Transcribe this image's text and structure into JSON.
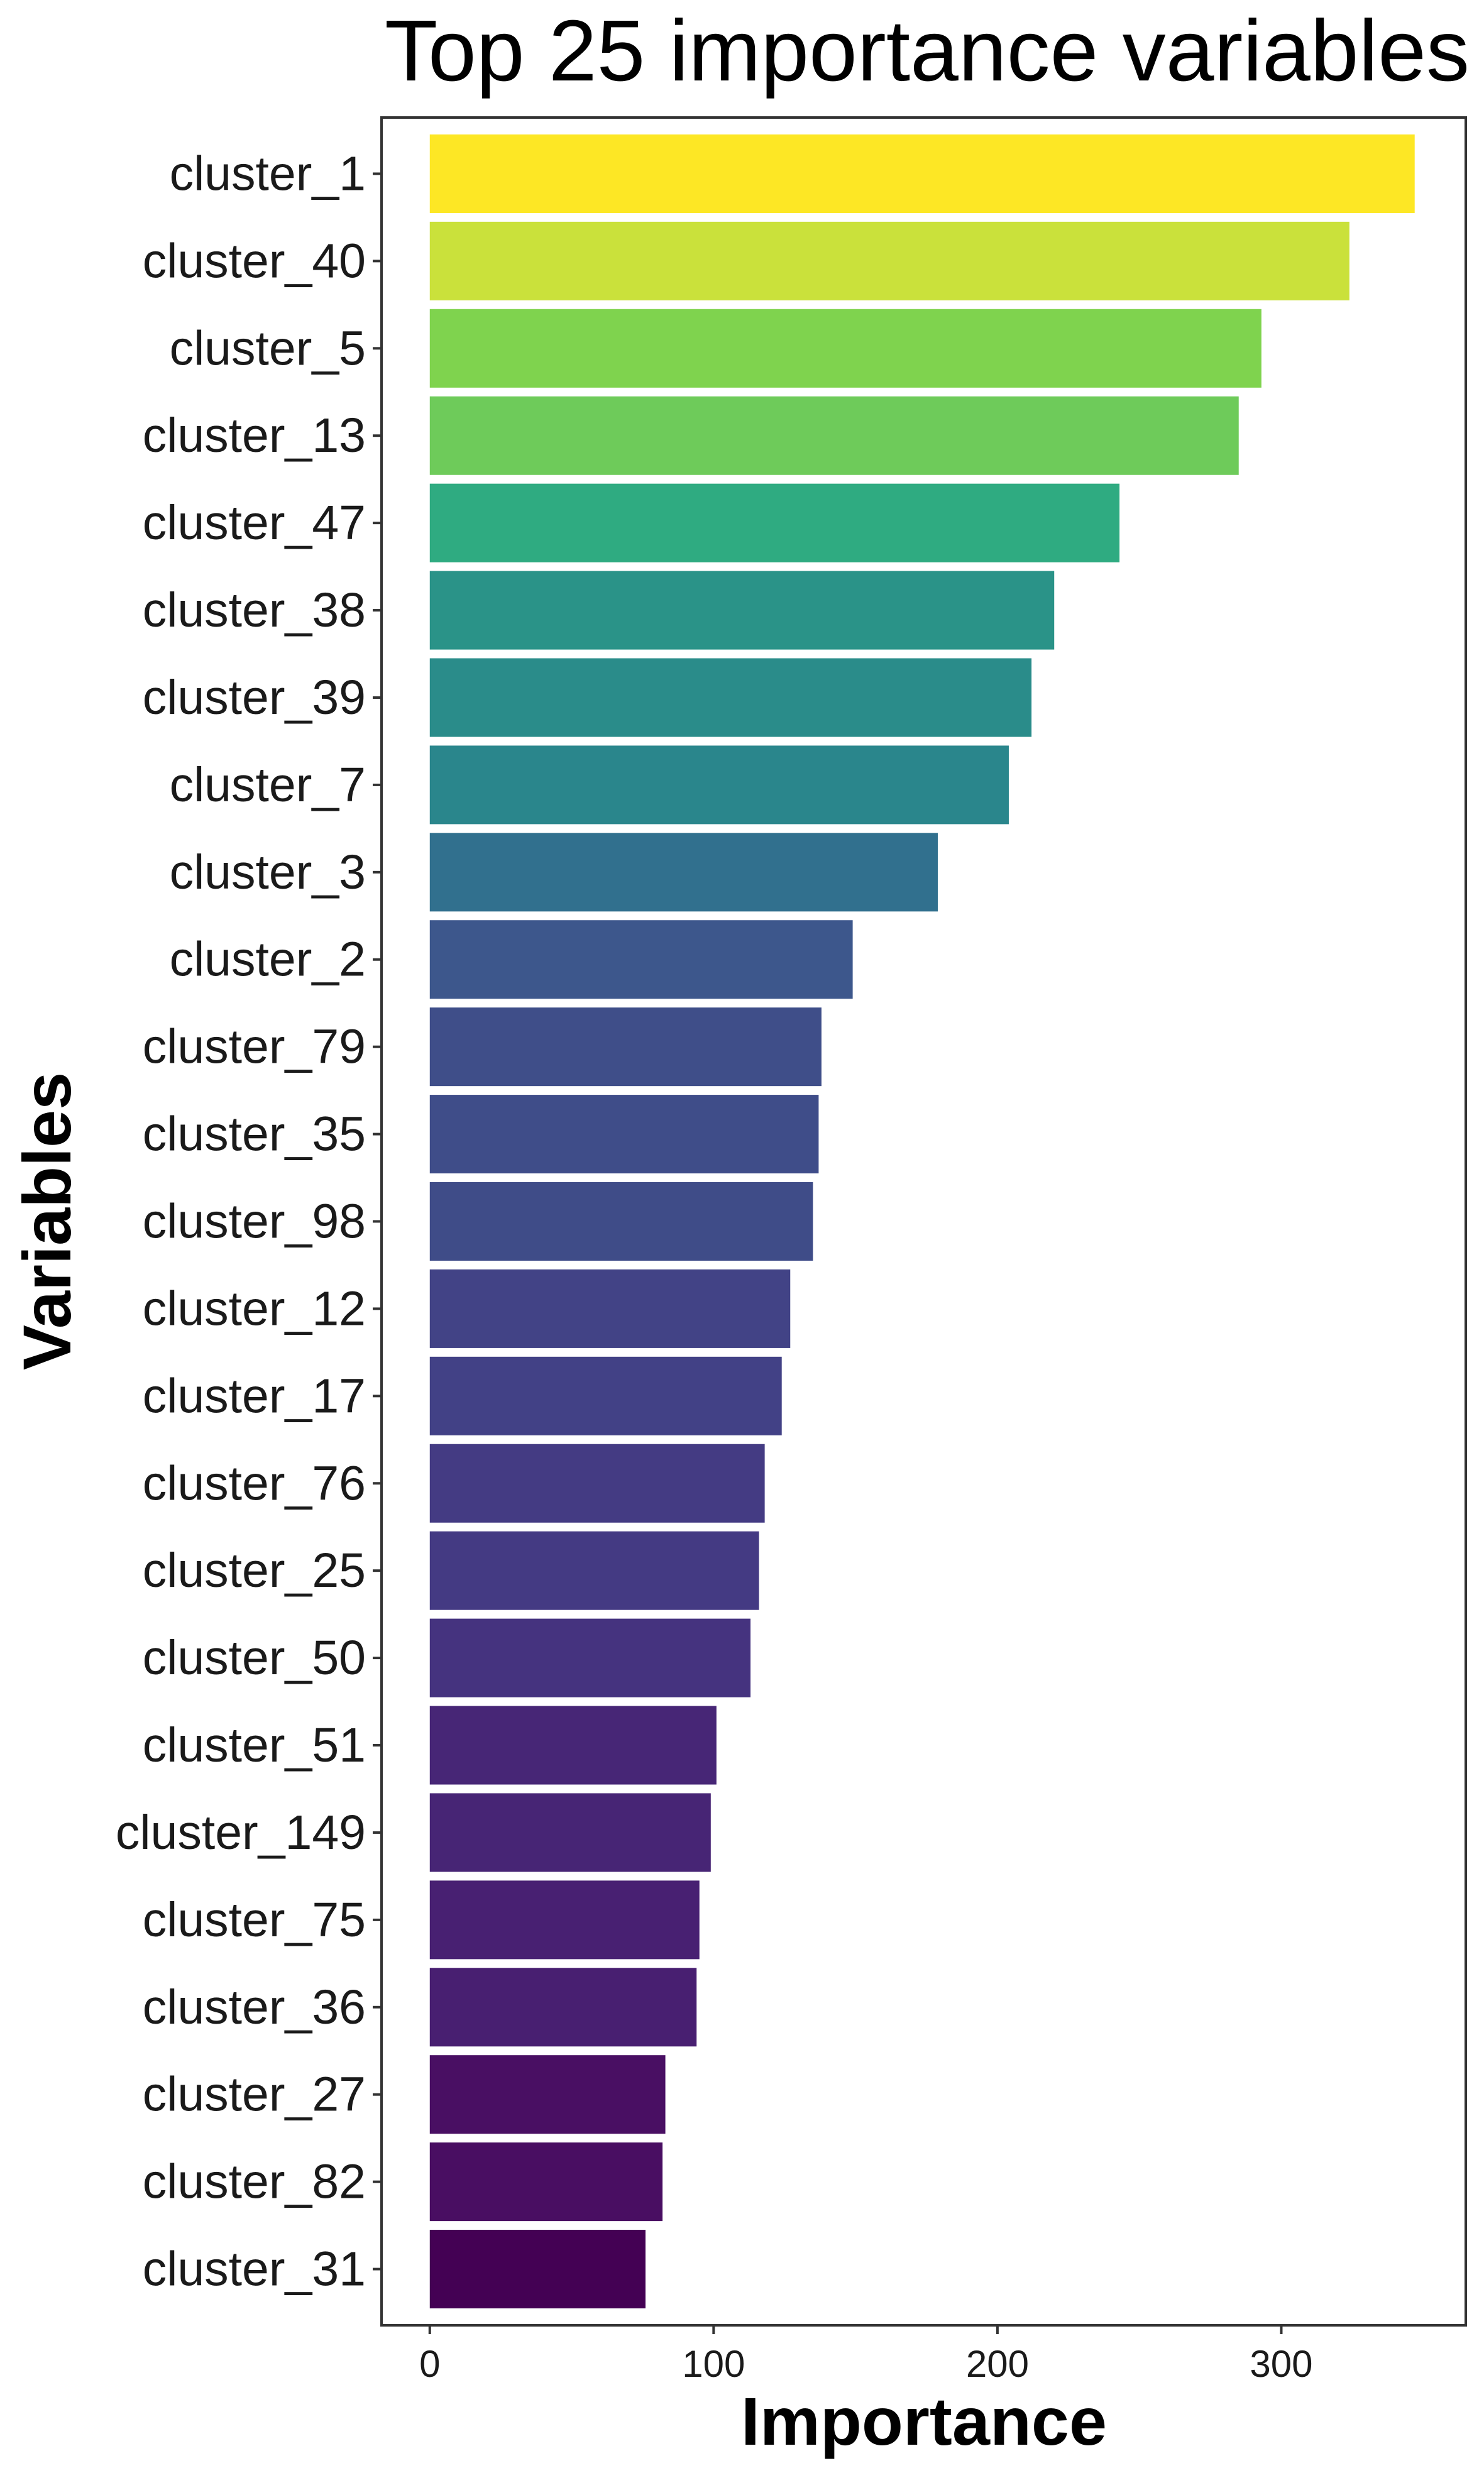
{
  "chart_data": {
    "type": "bar",
    "orientation": "horizontal",
    "title": "Top 25 importance variables",
    "xlabel": "Importance",
    "ylabel": "Variables",
    "xlim": [
      -17,
      365
    ],
    "x_ticks": [
      0,
      100,
      200,
      300
    ],
    "grid": false,
    "legend": "none",
    "categories": [
      "cluster_1",
      "cluster_40",
      "cluster_5",
      "cluster_13",
      "cluster_47",
      "cluster_38",
      "cluster_39",
      "cluster_7",
      "cluster_3",
      "cluster_2",
      "cluster_79",
      "cluster_35",
      "cluster_98",
      "cluster_12",
      "cluster_17",
      "cluster_76",
      "cluster_25",
      "cluster_50",
      "cluster_51",
      "cluster_149",
      "cluster_75",
      "cluster_36",
      "cluster_27",
      "cluster_82",
      "cluster_31"
    ],
    "values": [
      347,
      324,
      293,
      285,
      243,
      220,
      212,
      204,
      179,
      149,
      138,
      137,
      135,
      127,
      124,
      118,
      116,
      113,
      101,
      99,
      95,
      94,
      83,
      82,
      76
    ],
    "colors": [
      "#FDE725",
      "#CAE13B",
      "#7FD34E",
      "#6ECB5A",
      "#2FAB81",
      "#2A9388",
      "#2A8C8A",
      "#2A868C",
      "#31708E",
      "#3D578C",
      "#3F4E89",
      "#3F4D89",
      "#3F4C88",
      "#424386",
      "#424186",
      "#443B83",
      "#443A83",
      "#45337F",
      "#472676",
      "#472575",
      "#482072",
      "#481F71",
      "#490F63",
      "#490E62",
      "#440154"
    ]
  }
}
